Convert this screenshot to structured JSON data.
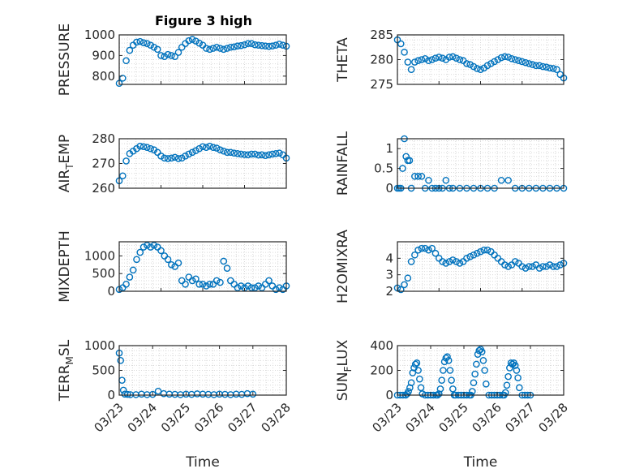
{
  "figure": {
    "title": "Figure 3 high",
    "marker_color": "#0072BD",
    "axis_color": "#262626",
    "grid_color": "#d9d9d9"
  },
  "chart_data": [
    {
      "type": "scatter",
      "ylabel": "PRESSURE",
      "ylim": [
        760,
        1000
      ],
      "yticks": [
        800,
        900,
        1000
      ],
      "xlim": [
        "03/23",
        "03/27"
      ],
      "xticks": [],
      "grid": true,
      "x": [
        "03/23 00:00",
        "03/23 02:00",
        "03/23 04:00",
        "03/23 06:00",
        "03/23 08:00",
        "03/23 10:00",
        "03/23 12:00",
        "03/23 14:00",
        "03/23 16:00",
        "03/23 18:00",
        "03/23 20:00",
        "03/23 22:00",
        "03/24 00:00",
        "03/24 02:00",
        "03/24 04:00",
        "03/24 06:00",
        "03/24 08:00",
        "03/24 10:00",
        "03/24 12:00",
        "03/24 14:00",
        "03/24 16:00",
        "03/24 18:00",
        "03/24 20:00",
        "03/24 22:00",
        "03/25 00:00",
        "03/25 02:00",
        "03/25 04:00",
        "03/25 06:00",
        "03/25 08:00",
        "03/25 10:00",
        "03/25 12:00",
        "03/25 14:00",
        "03/25 16:00",
        "03/25 18:00",
        "03/25 20:00",
        "03/25 22:00",
        "03/26 00:00",
        "03/26 02:00",
        "03/26 04:00",
        "03/26 06:00",
        "03/26 08:00",
        "03/26 10:00",
        "03/26 12:00",
        "03/26 14:00",
        "03/26 16:00",
        "03/26 18:00",
        "03/26 20:00",
        "03/26 22:00",
        "03/27 00:00"
      ],
      "y": [
        765,
        790,
        875,
        925,
        950,
        965,
        968,
        962,
        958,
        950,
        940,
        930,
        900,
        895,
        905,
        900,
        895,
        915,
        940,
        958,
        972,
        978,
        970,
        960,
        950,
        935,
        930,
        935,
        940,
        935,
        930,
        935,
        940,
        942,
        946,
        948,
        952,
        958,
        958,
        952,
        950,
        948,
        946,
        944,
        946,
        950,
        955,
        950,
        945
      ]
    },
    {
      "type": "scatter",
      "ylabel": "THETA",
      "ylim": [
        275,
        285
      ],
      "yticks": [
        275,
        280,
        285
      ],
      "xlim": [
        "03/23",
        "03/27"
      ],
      "xticks": [],
      "grid": true,
      "x": [
        "03/23 00:00",
        "03/23 02:00",
        "03/23 04:00",
        "03/23 06:00",
        "03/23 08:00",
        "03/23 10:00",
        "03/23 12:00",
        "03/23 14:00",
        "03/23 16:00",
        "03/23 18:00",
        "03/23 20:00",
        "03/23 22:00",
        "03/24 00:00",
        "03/24 02:00",
        "03/24 04:00",
        "03/24 06:00",
        "03/24 08:00",
        "03/24 10:00",
        "03/24 12:00",
        "03/24 14:00",
        "03/24 16:00",
        "03/24 18:00",
        "03/24 20:00",
        "03/24 22:00",
        "03/25 00:00",
        "03/25 02:00",
        "03/25 04:00",
        "03/25 06:00",
        "03/25 08:00",
        "03/25 10:00",
        "03/25 12:00",
        "03/25 14:00",
        "03/25 16:00",
        "03/25 18:00",
        "03/25 20:00",
        "03/25 22:00",
        "03/26 00:00",
        "03/26 02:00",
        "03/26 04:00",
        "03/26 06:00",
        "03/26 08:00",
        "03/26 10:00",
        "03/26 12:00",
        "03/26 14:00",
        "03/26 16:00",
        "03/26 18:00",
        "03/26 20:00",
        "03/26 22:00",
        "03/27 00:00"
      ],
      "y": [
        284.0,
        283.2,
        281.5,
        279.5,
        278.0,
        279.5,
        279.8,
        280.0,
        280.2,
        279.8,
        280.0,
        280.3,
        280.5,
        280.3,
        280.0,
        280.5,
        280.6,
        280.3,
        280.0,
        279.8,
        279.2,
        279.0,
        278.6,
        278.2,
        278.0,
        278.3,
        278.8,
        279.2,
        279.6,
        280.0,
        280.4,
        280.6,
        280.5,
        280.2,
        280.0,
        279.8,
        279.6,
        279.4,
        279.2,
        279.0,
        278.8,
        278.8,
        278.6,
        278.5,
        278.3,
        278.2,
        278.0,
        277.0,
        276.3
      ]
    },
    {
      "type": "scatter",
      "ylabel": "AIR_TEMP",
      "ylim": [
        260,
        280
      ],
      "yticks": [
        260,
        270,
        280
      ],
      "xlim": [
        "03/23",
        "03/27"
      ],
      "xticks": [],
      "grid": true,
      "x": [
        "03/23 00:00",
        "03/23 02:00",
        "03/23 04:00",
        "03/23 06:00",
        "03/23 08:00",
        "03/23 10:00",
        "03/23 12:00",
        "03/23 14:00",
        "03/23 16:00",
        "03/23 18:00",
        "03/23 20:00",
        "03/23 22:00",
        "03/24 00:00",
        "03/24 02:00",
        "03/24 04:00",
        "03/24 06:00",
        "03/24 08:00",
        "03/24 10:00",
        "03/24 12:00",
        "03/24 14:00",
        "03/24 16:00",
        "03/24 18:00",
        "03/24 20:00",
        "03/24 22:00",
        "03/25 00:00",
        "03/25 02:00",
        "03/25 04:00",
        "03/25 06:00",
        "03/25 08:00",
        "03/25 10:00",
        "03/25 12:00",
        "03/25 14:00",
        "03/25 16:00",
        "03/25 18:00",
        "03/25 20:00",
        "03/25 22:00",
        "03/26 00:00",
        "03/26 02:00",
        "03/26 04:00",
        "03/26 06:00",
        "03/26 08:00",
        "03/26 10:00",
        "03/26 12:00",
        "03/26 14:00",
        "03/26 16:00",
        "03/26 18:00",
        "03/26 20:00",
        "03/26 22:00",
        "03/27 00:00"
      ],
      "y": [
        263,
        265,
        271,
        274,
        275,
        276,
        277,
        276.8,
        276.5,
        276,
        275.5,
        274.5,
        273,
        272.2,
        272,
        272.2,
        272.5,
        272,
        272.2,
        273,
        273.8,
        274.5,
        275.2,
        276,
        276.8,
        276.5,
        277,
        276.5,
        276.2,
        275.5,
        275,
        274.5,
        274.5,
        274.2,
        274,
        273.8,
        273.6,
        273.5,
        273.8,
        273.8,
        273.4,
        273.5,
        273.2,
        273.5,
        273.8,
        274,
        274.2,
        273.5,
        272.2
      ]
    },
    {
      "type": "scatter",
      "ylabel": "RAINFALL",
      "ylim": [
        0,
        1.25
      ],
      "yticks": [
        0,
        0.5,
        1
      ],
      "ytick_labels": [
        "0",
        "0.5",
        "1"
      ],
      "xlim": [
        "03/23",
        "03/27"
      ],
      "xticks": [],
      "grid": true,
      "x": [
        "03/23 00:00",
        "03/23 01:00",
        "03/23 02:00",
        "03/23 03:00",
        "03/23 04:00",
        "03/23 05:00",
        "03/23 06:00",
        "03/23 07:00",
        "03/23 08:00",
        "03/23 10:00",
        "03/23 12:00",
        "03/23 14:00",
        "03/23 16:00",
        "03/23 18:00",
        "03/23 20:00",
        "03/23 22:00",
        "03/24 00:00",
        "03/24 02:00",
        "03/24 04:00",
        "03/24 06:00",
        "03/24 08:00",
        "03/24 12:00",
        "03/24 16:00",
        "03/24 20:00",
        "03/25 00:00",
        "03/25 04:00",
        "03/25 08:00",
        "03/25 12:00",
        "03/25 16:00",
        "03/25 20:00",
        "03/26 00:00",
        "03/26 04:00",
        "03/26 08:00",
        "03/26 12:00",
        "03/26 16:00",
        "03/26 20:00",
        "03/27 00:00"
      ],
      "y": [
        0,
        0,
        0,
        0.5,
        1.25,
        0.8,
        0.7,
        0.7,
        0,
        0.3,
        0.3,
        0.3,
        0,
        0.2,
        0,
        0,
        0,
        0,
        0.2,
        0,
        0,
        0,
        0,
        0,
        0,
        0,
        0,
        0.2,
        0.2,
        0,
        0,
        0,
        0,
        0,
        0,
        0,
        0
      ]
    },
    {
      "type": "scatter",
      "ylabel": "MIXDEPTH",
      "ylim": [
        0,
        1400
      ],
      "yticks": [
        0,
        500,
        1000
      ],
      "xlim": [
        "03/23",
        "03/27"
      ],
      "xticks": [],
      "grid": true,
      "x": [
        "03/23 00:00",
        "03/23 02:00",
        "03/23 04:00",
        "03/23 06:00",
        "03/23 08:00",
        "03/23 10:00",
        "03/23 12:00",
        "03/23 14:00",
        "03/23 16:00",
        "03/23 18:00",
        "03/23 20:00",
        "03/23 22:00",
        "03/24 00:00",
        "03/24 02:00",
        "03/24 04:00",
        "03/24 06:00",
        "03/24 08:00",
        "03/24 10:00",
        "03/24 12:00",
        "03/24 14:00",
        "03/24 16:00",
        "03/24 18:00",
        "03/24 20:00",
        "03/24 22:00",
        "03/25 00:00",
        "03/25 02:00",
        "03/25 04:00",
        "03/25 06:00",
        "03/25 08:00",
        "03/25 10:00",
        "03/25 12:00",
        "03/25 14:00",
        "03/25 16:00",
        "03/25 18:00",
        "03/25 20:00",
        "03/25 22:00",
        "03/26 00:00",
        "03/26 02:00",
        "03/26 04:00",
        "03/26 06:00",
        "03/26 08:00",
        "03/26 10:00",
        "03/26 12:00",
        "03/26 14:00",
        "03/26 16:00",
        "03/26 18:00",
        "03/26 20:00",
        "03/26 22:00",
        "03/27 00:00"
      ],
      "y": [
        50,
        100,
        200,
        400,
        600,
        900,
        1100,
        1250,
        1300,
        1250,
        1300,
        1250,
        1150,
        1000,
        900,
        750,
        700,
        800,
        300,
        200,
        400,
        300,
        350,
        200,
        200,
        150,
        200,
        200,
        300,
        250,
        850,
        650,
        300,
        200,
        100,
        150,
        100,
        150,
        100,
        100,
        150,
        100,
        200,
        300,
        150,
        50,
        100,
        50,
        150
      ]
    },
    {
      "type": "scatter",
      "ylabel": "H2OMIXRA",
      "ylim": [
        2,
        5
      ],
      "yticks": [
        2,
        3,
        4
      ],
      "xlim": [
        "03/23",
        "03/27"
      ],
      "xticks": [],
      "grid": true,
      "x": [
        "03/23 00:00",
        "03/23 02:00",
        "03/23 04:00",
        "03/23 06:00",
        "03/23 08:00",
        "03/23 10:00",
        "03/23 12:00",
        "03/23 14:00",
        "03/23 16:00",
        "03/23 18:00",
        "03/23 20:00",
        "03/23 22:00",
        "03/24 00:00",
        "03/24 02:00",
        "03/24 04:00",
        "03/24 06:00",
        "03/24 08:00",
        "03/24 10:00",
        "03/24 12:00",
        "03/24 14:00",
        "03/24 16:00",
        "03/24 18:00",
        "03/24 20:00",
        "03/24 22:00",
        "03/25 00:00",
        "03/25 02:00",
        "03/25 04:00",
        "03/25 06:00",
        "03/25 08:00",
        "03/25 10:00",
        "03/25 12:00",
        "03/25 14:00",
        "03/25 16:00",
        "03/25 18:00",
        "03/25 20:00",
        "03/25 22:00",
        "03/26 00:00",
        "03/26 02:00",
        "03/26 04:00",
        "03/26 06:00",
        "03/26 08:00",
        "03/26 10:00",
        "03/26 12:00",
        "03/26 14:00",
        "03/26 16:00",
        "03/26 18:00",
        "03/26 20:00",
        "03/26 22:00",
        "03/27 00:00"
      ],
      "y": [
        2.2,
        2.1,
        2.4,
        2.8,
        3.8,
        4.2,
        4.5,
        4.6,
        4.6,
        4.5,
        4.6,
        4.3,
        4.0,
        3.8,
        3.7,
        3.8,
        3.9,
        3.8,
        3.7,
        3.8,
        4.0,
        4.1,
        4.2,
        4.3,
        4.4,
        4.5,
        4.5,
        4.4,
        4.2,
        4.0,
        3.8,
        3.6,
        3.5,
        3.6,
        3.8,
        3.7,
        3.5,
        3.4,
        3.5,
        3.5,
        3.6,
        3.4,
        3.5,
        3.5,
        3.6,
        3.5,
        3.5,
        3.6,
        3.7
      ]
    },
    {
      "type": "scatter",
      "ylabel": "TERR_MSL",
      "ylim": [
        0,
        1000
      ],
      "yticks": [
        0,
        500,
        1000
      ],
      "xlim": [
        "03/23",
        "03/28"
      ],
      "xticks": [
        "03/23",
        "03/24",
        "03/25",
        "03/26",
        "03/27",
        "03/28"
      ],
      "xlabel": "Time",
      "grid": true,
      "x": [
        "03/23 00:00",
        "03/23 01:00",
        "03/23 02:00",
        "03/23 03:00",
        "03/23 04:00",
        "03/23 06:00",
        "03/23 08:00",
        "03/23 12:00",
        "03/23 16:00",
        "03/23 20:00",
        "03/24 00:00",
        "03/24 04:00",
        "03/24 08:00",
        "03/24 12:00",
        "03/24 16:00",
        "03/24 20:00",
        "03/25 00:00",
        "03/25 04:00",
        "03/25 08:00",
        "03/25 12:00",
        "03/25 16:00",
        "03/25 20:00",
        "03/26 00:00",
        "03/26 04:00",
        "03/26 08:00",
        "03/26 12:00",
        "03/26 16:00",
        "03/26 20:00",
        "03/27 00:00"
      ],
      "y": [
        850,
        700,
        300,
        100,
        20,
        15,
        10,
        10,
        20,
        10,
        15,
        80,
        30,
        20,
        15,
        10,
        20,
        15,
        25,
        20,
        15,
        10,
        20,
        15,
        10,
        20,
        15,
        30,
        20
      ]
    },
    {
      "type": "scatter",
      "ylabel": "SUN_FLUX",
      "ylim": [
        0,
        400
      ],
      "yticks": [
        0,
        200,
        400
      ],
      "xlim": [
        "03/23",
        "03/28"
      ],
      "xticks": [
        "03/23",
        "03/24",
        "03/25",
        "03/26",
        "03/27",
        "03/28"
      ],
      "xlabel": "Time",
      "grid": true,
      "x": [
        "03/23 00:00",
        "03/23 02:00",
        "03/23 04:00",
        "03/23 06:00",
        "03/23 07:00",
        "03/23 08:00",
        "03/23 09:00",
        "03/23 10:00",
        "03/23 11:00",
        "03/23 12:00",
        "03/23 13:00",
        "03/23 14:00",
        "03/23 15:00",
        "03/23 16:00",
        "03/23 17:00",
        "03/23 18:00",
        "03/23 20:00",
        "03/23 22:00",
        "03/24 00:00",
        "03/24 02:00",
        "03/24 04:00",
        "03/24 05:00",
        "03/24 06:00",
        "03/24 07:00",
        "03/24 08:00",
        "03/24 09:00",
        "03/24 10:00",
        "03/24 11:00",
        "03/24 12:00",
        "03/24 13:00",
        "03/24 14:00",
        "03/24 15:00",
        "03/24 16:00",
        "03/24 17:00",
        "03/24 18:00",
        "03/24 20:00",
        "03/24 22:00",
        "03/25 00:00",
        "03/25 02:00",
        "03/25 04:00",
        "03/25 05:00",
        "03/25 06:00",
        "03/25 07:00",
        "03/25 08:00",
        "03/25 09:00",
        "03/25 10:00",
        "03/25 11:00",
        "03/25 12:00",
        "03/25 13:00",
        "03/25 14:00",
        "03/25 15:00",
        "03/25 16:00",
        "03/25 18:00",
        "03/25 20:00",
        "03/25 22:00",
        "03/26 00:00",
        "03/26 02:00",
        "03/26 04:00",
        "03/26 05:00",
        "03/26 06:00",
        "03/26 07:00",
        "03/26 08:00",
        "03/26 09:00",
        "03/26 10:00",
        "03/26 11:00",
        "03/26 12:00",
        "03/26 13:00",
        "03/26 14:00",
        "03/26 15:00",
        "03/26 16:00",
        "03/26 18:00",
        "03/26 20:00",
        "03/26 22:00",
        "03/27 00:00"
      ],
      "y": [
        0,
        0,
        0,
        0,
        10,
        30,
        60,
        100,
        180,
        220,
        250,
        260,
        200,
        130,
        60,
        10,
        0,
        0,
        0,
        0,
        0,
        0,
        10,
        50,
        120,
        200,
        270,
        300,
        310,
        280,
        200,
        120,
        50,
        0,
        0,
        0,
        0,
        0,
        0,
        0,
        0,
        30,
        100,
        170,
        250,
        330,
        360,
        370,
        350,
        280,
        200,
        90,
        0,
        0,
        0,
        0,
        0,
        0,
        0,
        20,
        80,
        150,
        220,
        260,
        250,
        260,
        240,
        200,
        140,
        60,
        0,
        0,
        0,
        0
      ]
    }
  ]
}
